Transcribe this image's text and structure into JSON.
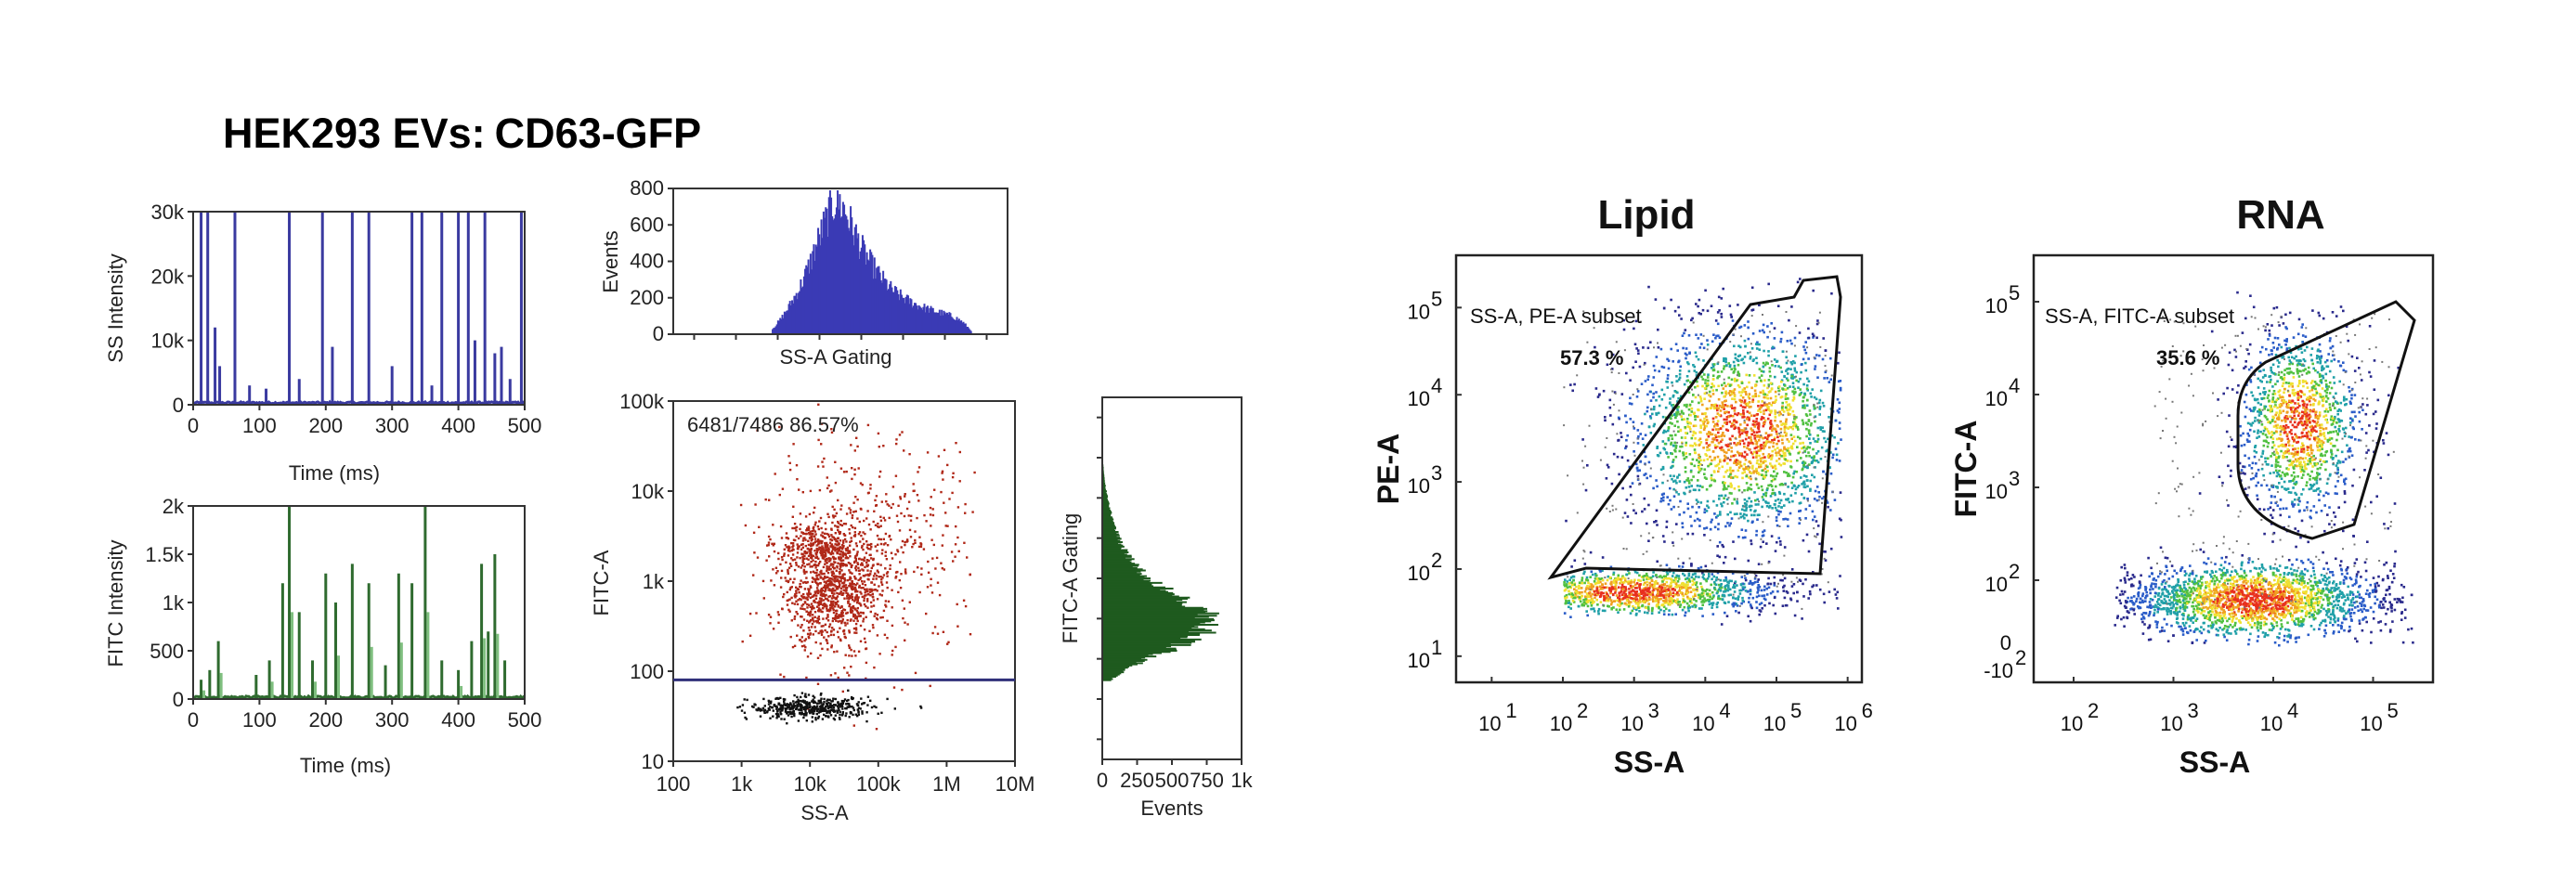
{
  "figure_title": {
    "part1": "HEK293 EVs:",
    "part2": "CD63-GFP"
  },
  "chart_data": [
    {
      "id": "ss_trace",
      "type": "line",
      "ylabel": "SS Intensity",
      "xlabel": "Time (ms)",
      "xlim": [
        0,
        500
      ],
      "ylim": [
        0,
        30000
      ],
      "xticks": [
        "0",
        "100",
        "200",
        "300",
        "400",
        "500"
      ],
      "yticks": [
        "0",
        "10k",
        "20k",
        "30k"
      ],
      "color": "#3a3aa0",
      "spike_times_ms": [
        12,
        22,
        33,
        40,
        63,
        85,
        110,
        145,
        160,
        195,
        210,
        240,
        265,
        300,
        330,
        345,
        360,
        375,
        400,
        415,
        425,
        440,
        455,
        465,
        478,
        495
      ],
      "spike_heights": [
        30000,
        30000,
        12000,
        6000,
        30000,
        3000,
        2500,
        30000,
        4000,
        30000,
        9000,
        30000,
        30000,
        6000,
        30000,
        30000,
        3000,
        30000,
        30000,
        30000,
        10000,
        30000,
        8000,
        9000,
        4000,
        30000
      ]
    },
    {
      "id": "fitc_trace",
      "type": "line",
      "ylabel": "FITC Intensity",
      "xlabel": "Time (ms)",
      "xlim": [
        0,
        500
      ],
      "ylim": [
        0,
        2000
      ],
      "xticks": [
        "0",
        "100",
        "200",
        "300",
        "400",
        "500"
      ],
      "yticks": [
        "0",
        "500",
        "1k",
        "1.5k",
        "2k"
      ],
      "color": "#2f6b2f",
      "spike_times_ms": [
        12,
        25,
        38,
        95,
        115,
        135,
        145,
        160,
        180,
        200,
        215,
        240,
        265,
        290,
        310,
        330,
        350,
        375,
        400,
        420,
        435,
        445,
        455,
        470
      ],
      "spike_heights": [
        200,
        300,
        600,
        250,
        400,
        1200,
        2000,
        900,
        400,
        1300,
        1000,
        1400,
        1200,
        350,
        1300,
        1200,
        2000,
        400,
        300,
        600,
        1400,
        700,
        1500,
        400
      ]
    },
    {
      "id": "ss_hist",
      "type": "bar",
      "ylabel": "Events",
      "xlabel": "SS-A Gating",
      "ylim": [
        0,
        800
      ],
      "yticks": [
        "0",
        "200",
        "400",
        "600",
        "800"
      ],
      "color": "#3a3ab5",
      "bin_centers_log10": [
        3.4,
        3.5,
        3.6,
        3.7,
        3.8,
        3.9,
        4.0,
        4.1,
        4.2,
        4.3,
        4.4,
        4.5,
        4.6,
        4.7,
        4.8,
        4.9,
        5.0,
        5.1,
        5.2,
        5.3,
        5.4,
        5.5,
        5.6
      ],
      "counts": [
        30,
        90,
        170,
        260,
        380,
        520,
        650,
        760,
        700,
        580,
        470,
        390,
        320,
        260,
        220,
        190,
        165,
        145,
        130,
        115,
        100,
        70,
        20
      ]
    },
    {
      "id": "fitc_hist",
      "type": "bar",
      "orientation": "horizontal",
      "ylabel": "FITC-A Gating",
      "xlabel": "Events",
      "xlim": [
        0,
        1000
      ],
      "xticks": [
        "0",
        "250",
        "500",
        "750",
        "1k"
      ],
      "color": "#1f5a1f",
      "bin_centers_log10": [
        2.1,
        2.2,
        2.3,
        2.4,
        2.5,
        2.6,
        2.7,
        2.8,
        2.9,
        3.0,
        3.1,
        3.2,
        3.3,
        3.4,
        3.5,
        3.6,
        3.7,
        3.8,
        3.9,
        4.0
      ],
      "counts": [
        60,
        180,
        360,
        560,
        720,
        820,
        770,
        620,
        470,
        350,
        250,
        190,
        140,
        110,
        80,
        60,
        40,
        25,
        15,
        8
      ]
    },
    {
      "id": "ss_fitc_scatter",
      "type": "scatter",
      "xlabel": "SS-A",
      "ylabel": "FITC-A",
      "xscale": "log",
      "yscale": "log",
      "xlim": [
        100,
        10000000
      ],
      "ylim": [
        10,
        100000
      ],
      "xticks": [
        "100",
        "1k",
        "10k",
        "100k",
        "1M",
        "10M"
      ],
      "yticks": [
        "10",
        "100",
        "1k",
        "10k",
        "100k"
      ],
      "gate_label": "6481/7486  86.57%",
      "gate_threshold_y": 80,
      "colors": {
        "gated": "#b02818",
        "ungated": "#111111"
      },
      "populations": [
        {
          "name": "main",
          "color": "gated",
          "n": 900,
          "cx_log": 4.3,
          "cy_log": 2.9,
          "sx": 0.35,
          "sy": 0.32
        },
        {
          "name": "upper",
          "color": "gated",
          "n": 260,
          "cx_log": 4.1,
          "cy_log": 3.4,
          "sx": 0.3,
          "sy": 0.12
        },
        {
          "name": "diffuse",
          "color": "gated",
          "n": 500,
          "cx_log": 4.9,
          "cy_log": 3.4,
          "sx": 0.8,
          "sy": 0.6
        },
        {
          "name": "below",
          "color": "ungated",
          "n": 450,
          "cx_log": 4.0,
          "cy_log": 1.6,
          "sx": 0.45,
          "sy": 0.06
        }
      ]
    },
    {
      "id": "lipid",
      "type": "scatter",
      "panel_title": "Lipid",
      "xlabel": "SS-A",
      "ylabel": "PE-A",
      "xscale": "log",
      "yscale": "log",
      "xticks": [
        "10",
        "10",
        "10",
        "10",
        "10",
        "10"
      ],
      "xexps": [
        "1",
        "2",
        "3",
        "4",
        "5",
        "6"
      ],
      "yticks": [
        "10",
        "10",
        "10",
        "10",
        "10"
      ],
      "yexps": [
        "1",
        "2",
        "3",
        "4",
        "5"
      ],
      "gate_label": "SS-A, PE-A subset",
      "gate_percent": "57.3 %",
      "populations": [
        {
          "name": "positive",
          "n": 2200,
          "cx_log": 4.5,
          "cy_log": 3.6,
          "sx": 0.8,
          "sy": 0.6
        },
        {
          "name": "band",
          "n": 1400,
          "cx_log": 3.0,
          "cy_log": 1.75,
          "sx": 1.1,
          "sy": 0.12
        }
      ]
    },
    {
      "id": "rna",
      "type": "scatter",
      "panel_title": "RNA",
      "xlabel": "SS-A",
      "ylabel": "FITC-A",
      "xscale": "log",
      "yscale": "log",
      "xticks": [
        "10",
        "10",
        "10",
        "10"
      ],
      "xexps": [
        "2",
        "3",
        "4",
        "5"
      ],
      "yticks": [
        "10",
        "10",
        "10",
        "10"
      ],
      "yexps": [
        "5",
        "4",
        "3",
        "2"
      ],
      "ytick_extra": [
        "0",
        "-10"
      ],
      "ytick_extra_exp": [
        "2"
      ],
      "gate_label": "SS-A, FITC-A subset",
      "gate_percent": "35.6 %",
      "populations": [
        {
          "name": "positive",
          "n": 1300,
          "cx_log": 4.25,
          "cy_log": 3.7,
          "sx": 0.3,
          "sy": 0.5
        },
        {
          "name": "band",
          "n": 2300,
          "cx_log": 3.8,
          "cy_log": 1.8,
          "sx": 0.7,
          "sy": 0.18
        }
      ]
    }
  ]
}
